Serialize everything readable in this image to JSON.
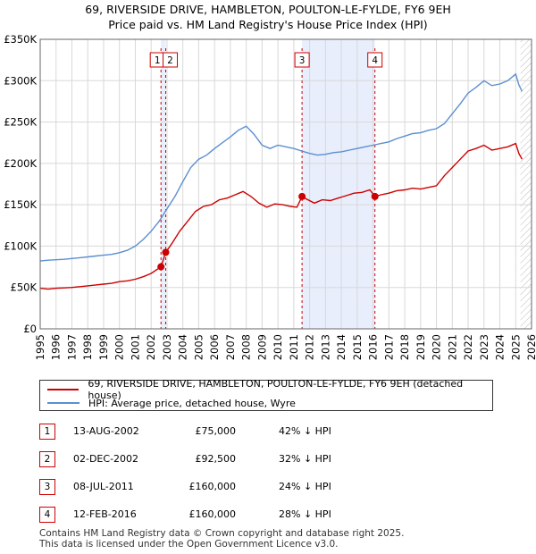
{
  "title_line1": "69, RIVERSIDE DRIVE, HAMBLETON, POULTON-LE-FYLDE, FY6 9EH",
  "title_line2": "Price paid vs. HM Land Registry's House Price Index (HPI)",
  "colors": {
    "price": "#cc0000",
    "hpi": "#5b8fd0",
    "shade": "#e8eefb",
    "grid": "#d8d8d8",
    "marker_box": "#cc0000"
  },
  "chart_data": {
    "type": "line",
    "ylim": [
      0,
      350000
    ],
    "xlim": [
      1995,
      2026
    ],
    "y_ticks": [
      {
        "value": 0,
        "label": "£0"
      },
      {
        "value": 50000,
        "label": "£50K"
      },
      {
        "value": 100000,
        "label": "£100K"
      },
      {
        "value": 150000,
        "label": "£150K"
      },
      {
        "value": 200000,
        "label": "£200K"
      },
      {
        "value": 250000,
        "label": "£250K"
      },
      {
        "value": 300000,
        "label": "£300K"
      },
      {
        "value": 350000,
        "label": "£350K"
      }
    ],
    "x_ticks": [
      "1995",
      "1996",
      "1997",
      "1998",
      "1999",
      "2000",
      "2001",
      "2002",
      "2003",
      "2004",
      "2005",
      "2006",
      "2007",
      "2008",
      "2009",
      "2010",
      "2011",
      "2012",
      "2013",
      "2014",
      "2015",
      "2016",
      "2017",
      "2018",
      "2019",
      "2020",
      "2021",
      "2022",
      "2023",
      "2024",
      "2025",
      "2026"
    ],
    "shaded_ranges": [
      [
        2002.62,
        2002.92
      ],
      [
        2011.52,
        2016.12
      ]
    ],
    "hatch_from": 2025.3,
    "series": [
      {
        "name": "69, RIVERSIDE DRIVE, HAMBLETON, POULTON-LE-FYLDE, FY6 9EH (detached house)",
        "color": "#cc0000",
        "x": [
          1995.0,
          1995.5,
          1996.0,
          1996.5,
          1997.0,
          1997.5,
          1998.0,
          1998.5,
          1999.0,
          1999.5,
          2000.0,
          2000.5,
          2001.0,
          2001.5,
          2002.0,
          2002.62,
          2002.92,
          2003.3,
          2003.8,
          2004.3,
          2004.8,
          2005.3,
          2005.8,
          2006.3,
          2006.8,
          2007.3,
          2007.8,
          2008.3,
          2008.8,
          2009.3,
          2009.8,
          2010.3,
          2010.8,
          2011.2,
          2011.52,
          2011.8,
          2012.3,
          2012.8,
          2013.3,
          2013.8,
          2014.3,
          2014.8,
          2015.3,
          2015.8,
          2016.12,
          2016.5,
          2017.0,
          2017.5,
          2018.0,
          2018.5,
          2019.0,
          2019.5,
          2020.0,
          2020.5,
          2021.0,
          2021.5,
          2022.0,
          2022.5,
          2023.0,
          2023.5,
          2024.0,
          2024.5,
          2025.0,
          2025.2,
          2025.4
        ],
        "values": [
          49000,
          48000,
          49000,
          49500,
          50000,
          51000,
          52000,
          53000,
          54000,
          55000,
          57000,
          58000,
          60000,
          63000,
          67000,
          75000,
          92500,
          103000,
          118000,
          130000,
          142000,
          148000,
          150000,
          156000,
          158000,
          162000,
          166000,
          160000,
          152000,
          147000,
          151000,
          150000,
          148000,
          147000,
          160000,
          157000,
          152000,
          156000,
          155000,
          158000,
          161000,
          164000,
          165000,
          168000,
          160000,
          162000,
          164000,
          167000,
          168000,
          170000,
          169000,
          171000,
          173000,
          185000,
          195000,
          205000,
          215000,
          218000,
          222000,
          216000,
          218000,
          220000,
          224000,
          212000,
          205000
        ]
      },
      {
        "name": "HPI: Average price, detached house, Wyre",
        "color": "#5b8fd0",
        "x": [
          1995.0,
          1995.5,
          1996.0,
          1996.5,
          1997.0,
          1997.5,
          1998.0,
          1998.5,
          1999.0,
          1999.5,
          2000.0,
          2000.5,
          2001.0,
          2001.5,
          2002.0,
          2002.5,
          2003.0,
          2003.5,
          2004.0,
          2004.5,
          2005.0,
          2005.5,
          2006.0,
          2006.5,
          2007.0,
          2007.5,
          2008.0,
          2008.5,
          2009.0,
          2009.5,
          2010.0,
          2010.5,
          2011.0,
          2011.5,
          2012.0,
          2012.5,
          2013.0,
          2013.5,
          2014.0,
          2014.5,
          2015.0,
          2015.5,
          2016.0,
          2016.5,
          2017.0,
          2017.5,
          2018.0,
          2018.5,
          2019.0,
          2019.5,
          2020.0,
          2020.5,
          2021.0,
          2021.5,
          2022.0,
          2022.5,
          2023.0,
          2023.5,
          2024.0,
          2024.5,
          2025.0,
          2025.2,
          2025.4
        ],
        "values": [
          82000,
          83000,
          83500,
          84000,
          85000,
          86000,
          87000,
          88000,
          89000,
          90000,
          92000,
          95000,
          100000,
          108000,
          118000,
          130000,
          145000,
          160000,
          178000,
          195000,
          205000,
          210000,
          218000,
          225000,
          232000,
          240000,
          245000,
          235000,
          222000,
          218000,
          222000,
          220000,
          218000,
          215000,
          212000,
          210000,
          211000,
          213000,
          214000,
          216000,
          218000,
          220000,
          222000,
          224000,
          226000,
          230000,
          233000,
          236000,
          237000,
          240000,
          242000,
          248000,
          260000,
          272000,
          285000,
          292000,
          300000,
          294000,
          296000,
          300000,
          308000,
          295000,
          287000
        ]
      }
    ],
    "sale_points": [
      {
        "id": "1",
        "x": 2002.62,
        "value": 75000
      },
      {
        "id": "2",
        "x": 2002.92,
        "value": 92500
      },
      {
        "id": "3",
        "x": 2011.52,
        "value": 160000
      },
      {
        "id": "4",
        "x": 2016.12,
        "value": 160000
      }
    ]
  },
  "legend": {
    "price_label": "69, RIVERSIDE DRIVE, HAMBLETON, POULTON-LE-FYLDE, FY6 9EH (detached house)",
    "hpi_label": "HPI: Average price, detached house, Wyre"
  },
  "transactions": [
    {
      "id": "1",
      "date": "13-AUG-2002",
      "price": "£75,000",
      "hpi": "42% ↓ HPI"
    },
    {
      "id": "2",
      "date": "02-DEC-2002",
      "price": "£92,500",
      "hpi": "32% ↓ HPI"
    },
    {
      "id": "3",
      "date": "08-JUL-2011",
      "price": "£160,000",
      "hpi": "24% ↓ HPI"
    },
    {
      "id": "4",
      "date": "12-FEB-2016",
      "price": "£160,000",
      "hpi": "28% ↓ HPI"
    }
  ],
  "footer_line1": "Contains HM Land Registry data © Crown copyright and database right 2025.",
  "footer_line2": "This data is licensed under the Open Government Licence v3.0."
}
